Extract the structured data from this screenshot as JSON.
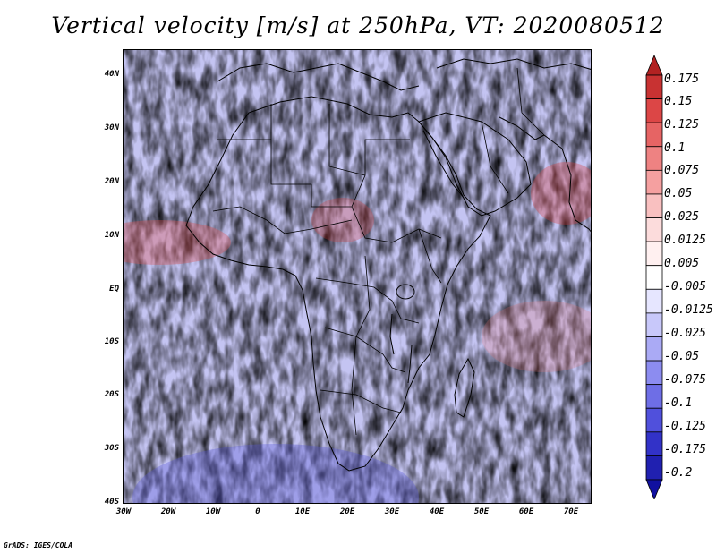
{
  "title": "Vertical velocity [m/s] at 250hPa, VT: 2020080512",
  "credit": "GrADS: IGES/COLA",
  "map": {
    "variable": "Vertical velocity",
    "units": "m/s",
    "level": "250hPa",
    "valid_time": "2020080512",
    "region": "Africa",
    "lat_range": [
      -40,
      45
    ],
    "lon_range": [
      -30,
      75
    ],
    "lat_labels": [
      "40N",
      "30N",
      "20N",
      "10N",
      "EQ",
      "10S",
      "20S",
      "30S",
      "40S"
    ],
    "lon_labels": [
      "30W",
      "20W",
      "10W",
      "0",
      "10E",
      "20E",
      "30E",
      "40E",
      "50E",
      "60E",
      "70E"
    ]
  },
  "colorbar": {
    "labels": [
      "0.175",
      "0.15",
      "0.125",
      "0.1",
      "0.075",
      "0.05",
      "0.025",
      "0.0125",
      "0.005",
      "-0.005",
      "-0.0125",
      "-0.025",
      "-0.05",
      "-0.075",
      "-0.1",
      "-0.125",
      "-0.175",
      "-0.2"
    ],
    "colors": [
      "#b22222",
      "#c83232",
      "#dc4646",
      "#e66464",
      "#ee8282",
      "#f5a0a0",
      "#f9c0c0",
      "#fcdcdc",
      "#fff0f0",
      "#ffffff",
      "#e6e6ff",
      "#c8c8fa",
      "#aaaaf5",
      "#8c8cf0",
      "#6e6ee6",
      "#5050dc",
      "#3232c8",
      "#2020b0",
      "#1010a0"
    ]
  }
}
